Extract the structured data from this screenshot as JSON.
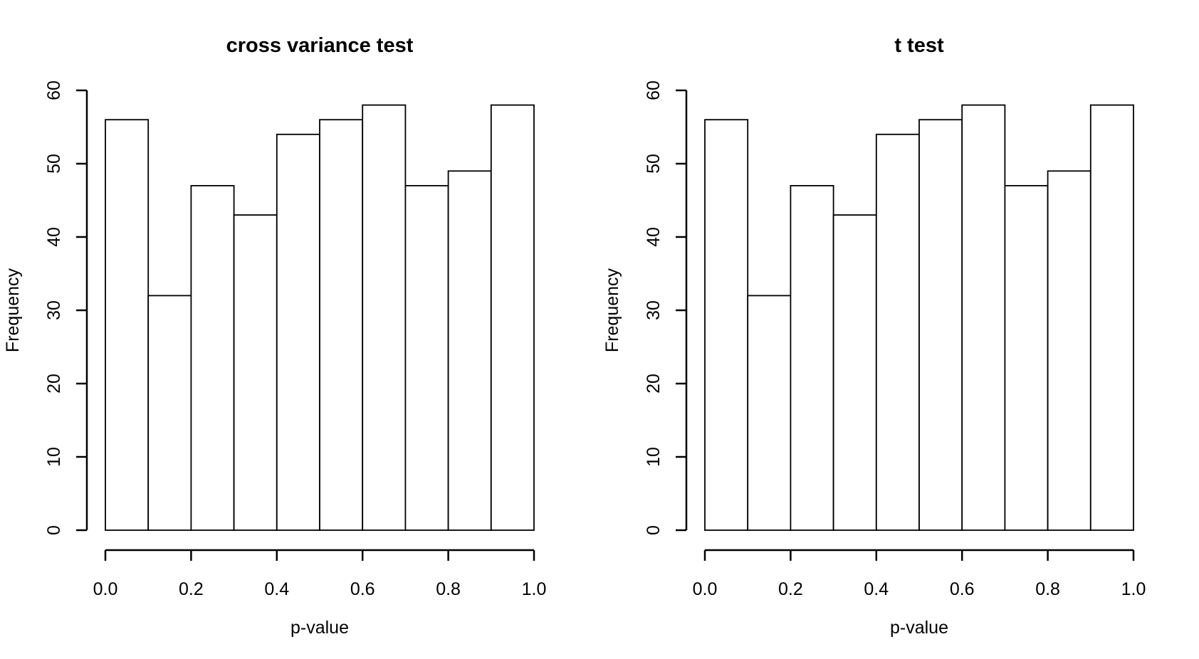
{
  "figure": {
    "background_color": "#ffffff",
    "stroke_color": "#000000",
    "text_color": "#000000"
  },
  "chart_data": [
    {
      "type": "bar",
      "subtype": "histogram",
      "title": "cross variance test",
      "xlabel": "p-value",
      "ylabel": "Frequency",
      "bin_start": 0.0,
      "bin_width": 0.1,
      "categories": [
        "0.0-0.1",
        "0.1-0.2",
        "0.2-0.3",
        "0.3-0.4",
        "0.4-0.5",
        "0.5-0.6",
        "0.6-0.7",
        "0.7-0.8",
        "0.8-0.9",
        "0.9-1.0"
      ],
      "values": [
        56,
        32,
        47,
        43,
        54,
        56,
        58,
        47,
        49,
        58
      ],
      "xlim": [
        0.0,
        1.0
      ],
      "ylim": [
        0,
        60
      ],
      "xticks": [
        0.0,
        0.2,
        0.4,
        0.6,
        0.8,
        1.0
      ],
      "xtick_labels": [
        "0.0",
        "0.2",
        "0.4",
        "0.6",
        "0.8",
        "1.0"
      ],
      "yticks": [
        0,
        10,
        20,
        30,
        40,
        50,
        60
      ],
      "ytick_labels": [
        "0",
        "10",
        "20",
        "30",
        "40",
        "50",
        "60"
      ],
      "bar_fill": "#ffffff",
      "bar_stroke": "#000000",
      "grid": false,
      "legend": null
    },
    {
      "type": "bar",
      "subtype": "histogram",
      "title": "t test",
      "xlabel": "p-value",
      "ylabel": "Frequency",
      "bin_start": 0.0,
      "bin_width": 0.1,
      "categories": [
        "0.0-0.1",
        "0.1-0.2",
        "0.2-0.3",
        "0.3-0.4",
        "0.4-0.5",
        "0.5-0.6",
        "0.6-0.7",
        "0.7-0.8",
        "0.8-0.9",
        "0.9-1.0"
      ],
      "values": [
        56,
        32,
        47,
        43,
        54,
        56,
        58,
        47,
        49,
        58
      ],
      "xlim": [
        0.0,
        1.0
      ],
      "ylim": [
        0,
        60
      ],
      "xticks": [
        0.0,
        0.2,
        0.4,
        0.6,
        0.8,
        1.0
      ],
      "xtick_labels": [
        "0.0",
        "0.2",
        "0.4",
        "0.6",
        "0.8",
        "1.0"
      ],
      "yticks": [
        0,
        10,
        20,
        30,
        40,
        50,
        60
      ],
      "ytick_labels": [
        "0",
        "10",
        "20",
        "30",
        "40",
        "50",
        "60"
      ],
      "bar_fill": "#ffffff",
      "bar_stroke": "#000000",
      "grid": false,
      "legend": null
    }
  ]
}
